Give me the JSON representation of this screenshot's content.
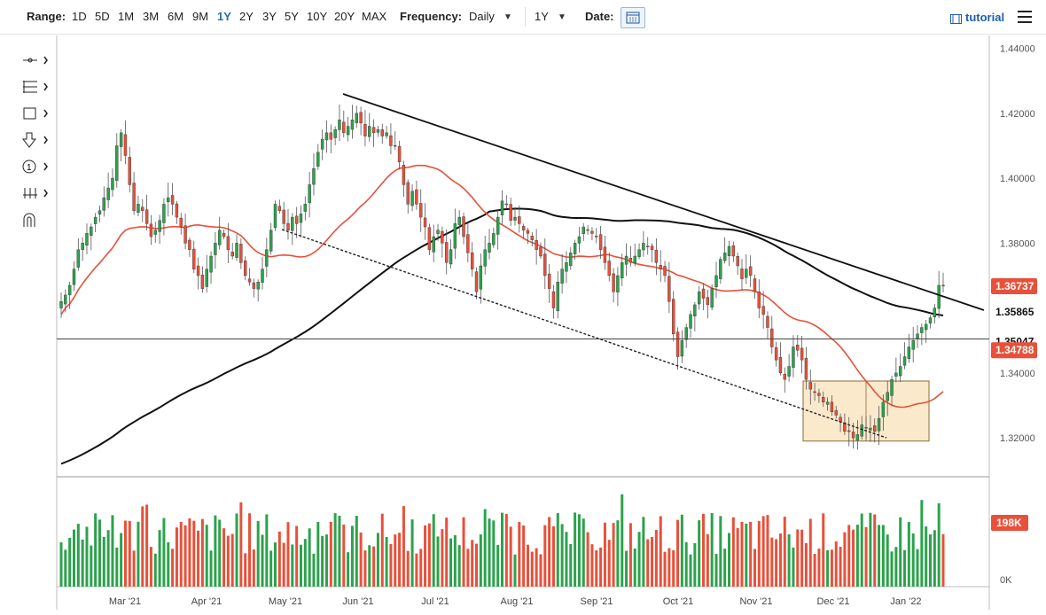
{
  "toolbar": {
    "range_label": "Range:",
    "ranges": [
      "1D",
      "5D",
      "1M",
      "3M",
      "6M",
      "9M",
      "1Y",
      "2Y",
      "3Y",
      "5Y",
      "10Y",
      "20Y",
      "MAX"
    ],
    "active_range": "1Y",
    "frequency_label": "Frequency:",
    "frequency_value": "Daily",
    "period_value": "1Y",
    "date_label": "Date:",
    "tutorial_label": "tutorial"
  },
  "drawing_tools": [
    "crosshair-icon",
    "fib-retracement-icon",
    "rectangle-icon",
    "arrow-down-icon",
    "numbered-marker-icon",
    "measure-icon",
    "magnet-icon"
  ],
  "colors": {
    "up": "#2ca24c",
    "down": "#e8503a",
    "ma_fast": "#e8503a",
    "ma_slow": "#111111",
    "box_fill": "#fbe9cc",
    "box_stroke": "#8a6a3a"
  },
  "chart_data": {
    "type": "candlestick",
    "y_ticks": [
      "1.44000",
      "1.42000",
      "1.40000",
      "1.38000",
      "1.34000",
      "1.32000"
    ],
    "ylim": [
      1.308,
      1.444
    ],
    "x_ticks": [
      "Mar '21",
      "Apr '21",
      "May '21",
      "Jun '21",
      "Jul '21",
      "Aug '21",
      "Sep '21",
      "Oct '21",
      "Nov '21",
      "Dec '21",
      "Jan '22"
    ],
    "price_labels": {
      "last": "1.36737",
      "ma_slow": "1.35865",
      "horizontal": "1.35047",
      "ma_fast": "1.34788"
    },
    "horizontal_level": 1.35047,
    "volume": {
      "last_label": "198K",
      "zero_label": "0K",
      "max": 280
    },
    "closes": [
      1.362,
      1.364,
      1.367,
      1.372,
      1.378,
      1.38,
      1.383,
      1.385,
      1.388,
      1.39,
      1.394,
      1.397,
      1.4,
      1.41,
      1.414,
      1.407,
      1.398,
      1.39,
      1.392,
      1.39,
      1.386,
      1.382,
      1.384,
      1.387,
      1.392,
      1.394,
      1.392,
      1.388,
      1.385,
      1.38,
      1.378,
      1.372,
      1.37,
      1.366,
      1.372,
      1.376,
      1.38,
      1.384,
      1.382,
      1.378,
      1.376,
      1.38,
      1.374,
      1.37,
      1.368,
      1.366,
      1.368,
      1.372,
      1.378,
      1.384,
      1.392,
      1.39,
      1.386,
      1.384,
      1.388,
      1.386,
      1.389,
      1.392,
      1.398,
      1.403,
      1.408,
      1.412,
      1.414,
      1.412,
      1.415,
      1.418,
      1.414,
      1.416,
      1.418,
      1.42,
      1.417,
      1.413,
      1.416,
      1.414,
      1.415,
      1.413,
      1.414,
      1.41,
      1.41,
      1.405,
      1.398,
      1.392,
      1.396,
      1.392,
      1.388,
      1.385,
      1.378,
      1.382,
      1.384,
      1.38,
      1.374,
      1.378,
      1.386,
      1.388,
      1.382,
      1.377,
      1.372,
      1.365,
      1.373,
      1.378,
      1.38,
      1.383,
      1.388,
      1.393,
      1.392,
      1.387,
      1.388,
      1.386,
      1.384,
      1.383,
      1.381,
      1.378,
      1.376,
      1.37,
      1.366,
      1.36,
      1.368,
      1.372,
      1.374,
      1.377,
      1.38,
      1.382,
      1.385,
      1.384,
      1.383,
      1.382,
      1.378,
      1.374,
      1.37,
      1.365,
      1.37,
      1.374,
      1.376,
      1.374,
      1.376,
      1.378,
      1.38,
      1.379,
      1.378,
      1.374,
      1.372,
      1.37,
      1.362,
      1.352,
      1.345,
      1.35,
      1.354,
      1.358,
      1.361,
      1.365,
      1.363,
      1.361,
      1.366,
      1.37,
      1.375,
      1.377,
      1.379,
      1.376,
      1.373,
      1.369,
      1.372,
      1.37,
      1.365,
      1.36,
      1.358,
      1.354,
      1.348,
      1.344,
      1.34,
      1.338,
      1.342,
      1.348,
      1.347,
      1.344,
      1.338,
      1.335,
      1.334,
      1.333,
      1.331,
      1.331,
      1.328,
      1.327,
      1.325,
      1.322,
      1.322,
      1.32,
      1.321,
      1.324,
      1.323,
      1.323,
      1.322,
      1.326,
      1.331,
      1.334,
      1.338,
      1.34,
      1.342,
      1.345,
      1.348,
      1.35,
      1.352,
      1.354,
      1.355,
      1.357,
      1.36,
      1.367,
      1.367
    ]
  }
}
